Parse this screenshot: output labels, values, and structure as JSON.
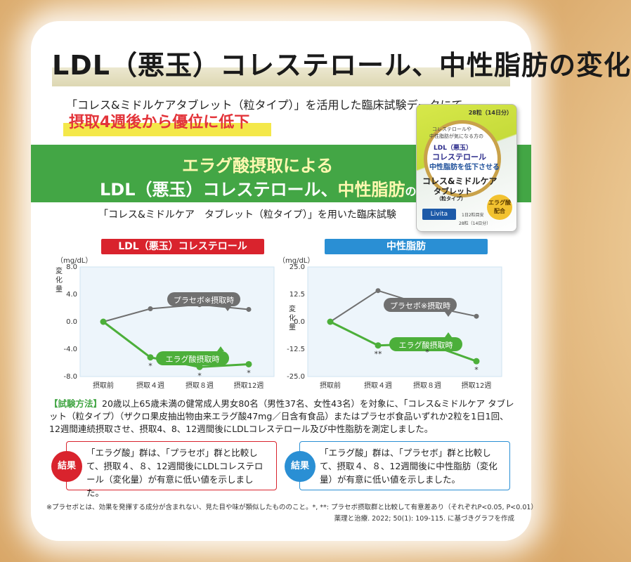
{
  "header": {
    "title": "LDL（悪玉）コレステロール、中性脂肪の変化",
    "intro": "「コレス&ミドルケアタブレット（粒タイプ）」を活用した臨床試験データにて",
    "highlight": "摂取4週後から優位に低下"
  },
  "banner": {
    "line1": "エラグ酸摂取による",
    "line2_main": "LDL（悪玉）コレステロール、",
    "line2_accent": "中性脂肪",
    "line2_tail": "の推移"
  },
  "trial_caption": "「コレス&ミドルケア　タブレット（粒タイプ）」を用いた臨床試験",
  "package": {
    "line1": "コレステロールや",
    "line2": "中性脂肪が気になる方の",
    "line3": "LDL（悪玉）",
    "line4": "コレステロール",
    "line5": "中性脂肪を低下させる",
    "name1": "コレス&ミドルケア",
    "name2": "タブレット",
    "name3": "（粒タイプ）",
    "brand": "Livita",
    "count": "28粒（14日分）",
    "badge": "エラグ酸 配合",
    "dose": "1日2粒目安",
    "count_bottom": "28粒（14日分）"
  },
  "colors": {
    "placebo": "#707070",
    "ellagic": "#4caf3a",
    "ldl_header": "#d9232d",
    "tg_header": "#2a8fd4",
    "banner_green": "#43a645",
    "highlight_red": "#e3343a"
  },
  "chart_data": [
    {
      "type": "line",
      "title": "LDL（悪玉）コレステロール",
      "unit": "（mg/dL）",
      "ylabel": "変化量",
      "categories": [
        "摂取前",
        "摂取４週",
        "摂取８週",
        "摂取12週"
      ],
      "yticks": [
        "8.0",
        "4.0",
        "0.0",
        "-4.0",
        "-8.0"
      ],
      "ylim": [
        -8,
        8
      ],
      "series": [
        {
          "name": "プラセボ※摂取時",
          "values": [
            0,
            1.9,
            2.5,
            1.8
          ]
        },
        {
          "name": "エラグ酸摂取時",
          "values": [
            0,
            -5.2,
            -6.6,
            -6.2
          ]
        }
      ],
      "significance": [
        "",
        "*",
        "*",
        "*"
      ]
    },
    {
      "type": "line",
      "title": "中性脂肪",
      "unit": "（mg/dL）",
      "ylabel": "変化量",
      "categories": [
        "摂取前",
        "摂取４週",
        "摂取８週",
        "摂取12週"
      ],
      "yticks": [
        "25.0",
        "12.5",
        "0.0",
        "-12.5",
        "-25.0"
      ],
      "ylim": [
        -25,
        25
      ],
      "series": [
        {
          "name": "プラセボ※摂取時",
          "values": [
            0,
            14.2,
            7.2,
            2.5
          ]
        },
        {
          "name": "エラグ酸摂取時",
          "values": [
            0,
            -10.8,
            -10.0,
            -18.0
          ]
        }
      ],
      "significance": [
        "",
        "**",
        "*",
        "*"
      ]
    }
  ],
  "method": {
    "tag": "【試験方法】",
    "text": "20歳以上65歳未満の健常成人男女80名（男性37名、女性43名）を対象に、「コレス&ミドルケア タブレット（粒タイプ）（ザクロ果皮抽出物由来エラグ酸47mg／日含有食品）またはプラセボ食品いずれか2粒を1日1回、12週間連続摂取させ、摂取4、8、12週間後にLDLコレステロール及び中性脂肪を測定しました。"
  },
  "results": [
    {
      "label": "結果",
      "text": "「エラグ酸」群は、「プラセボ」群と比較して、摂取４、８、12週間後にLDLコレステロール（変化量）が有意に低い値を示しました。"
    },
    {
      "label": "結果",
      "text": "「エラグ酸」群は、「プラセボ」群と比較して、摂取４、８、12週間後に中性脂肪（変化量）が有意に低い値を示しました。"
    }
  ],
  "footnote1": "※プラセボとは、効果を発揮する成分が含まれない、見た目や味が類似したもののこと。*, **: プラセボ摂取群と比較して有意差あり（それぞれP<0.05, P<0.01）",
  "footnote2": "薬理と治療. 2022; 50(1): 109-115. に基づきグラフを作成"
}
